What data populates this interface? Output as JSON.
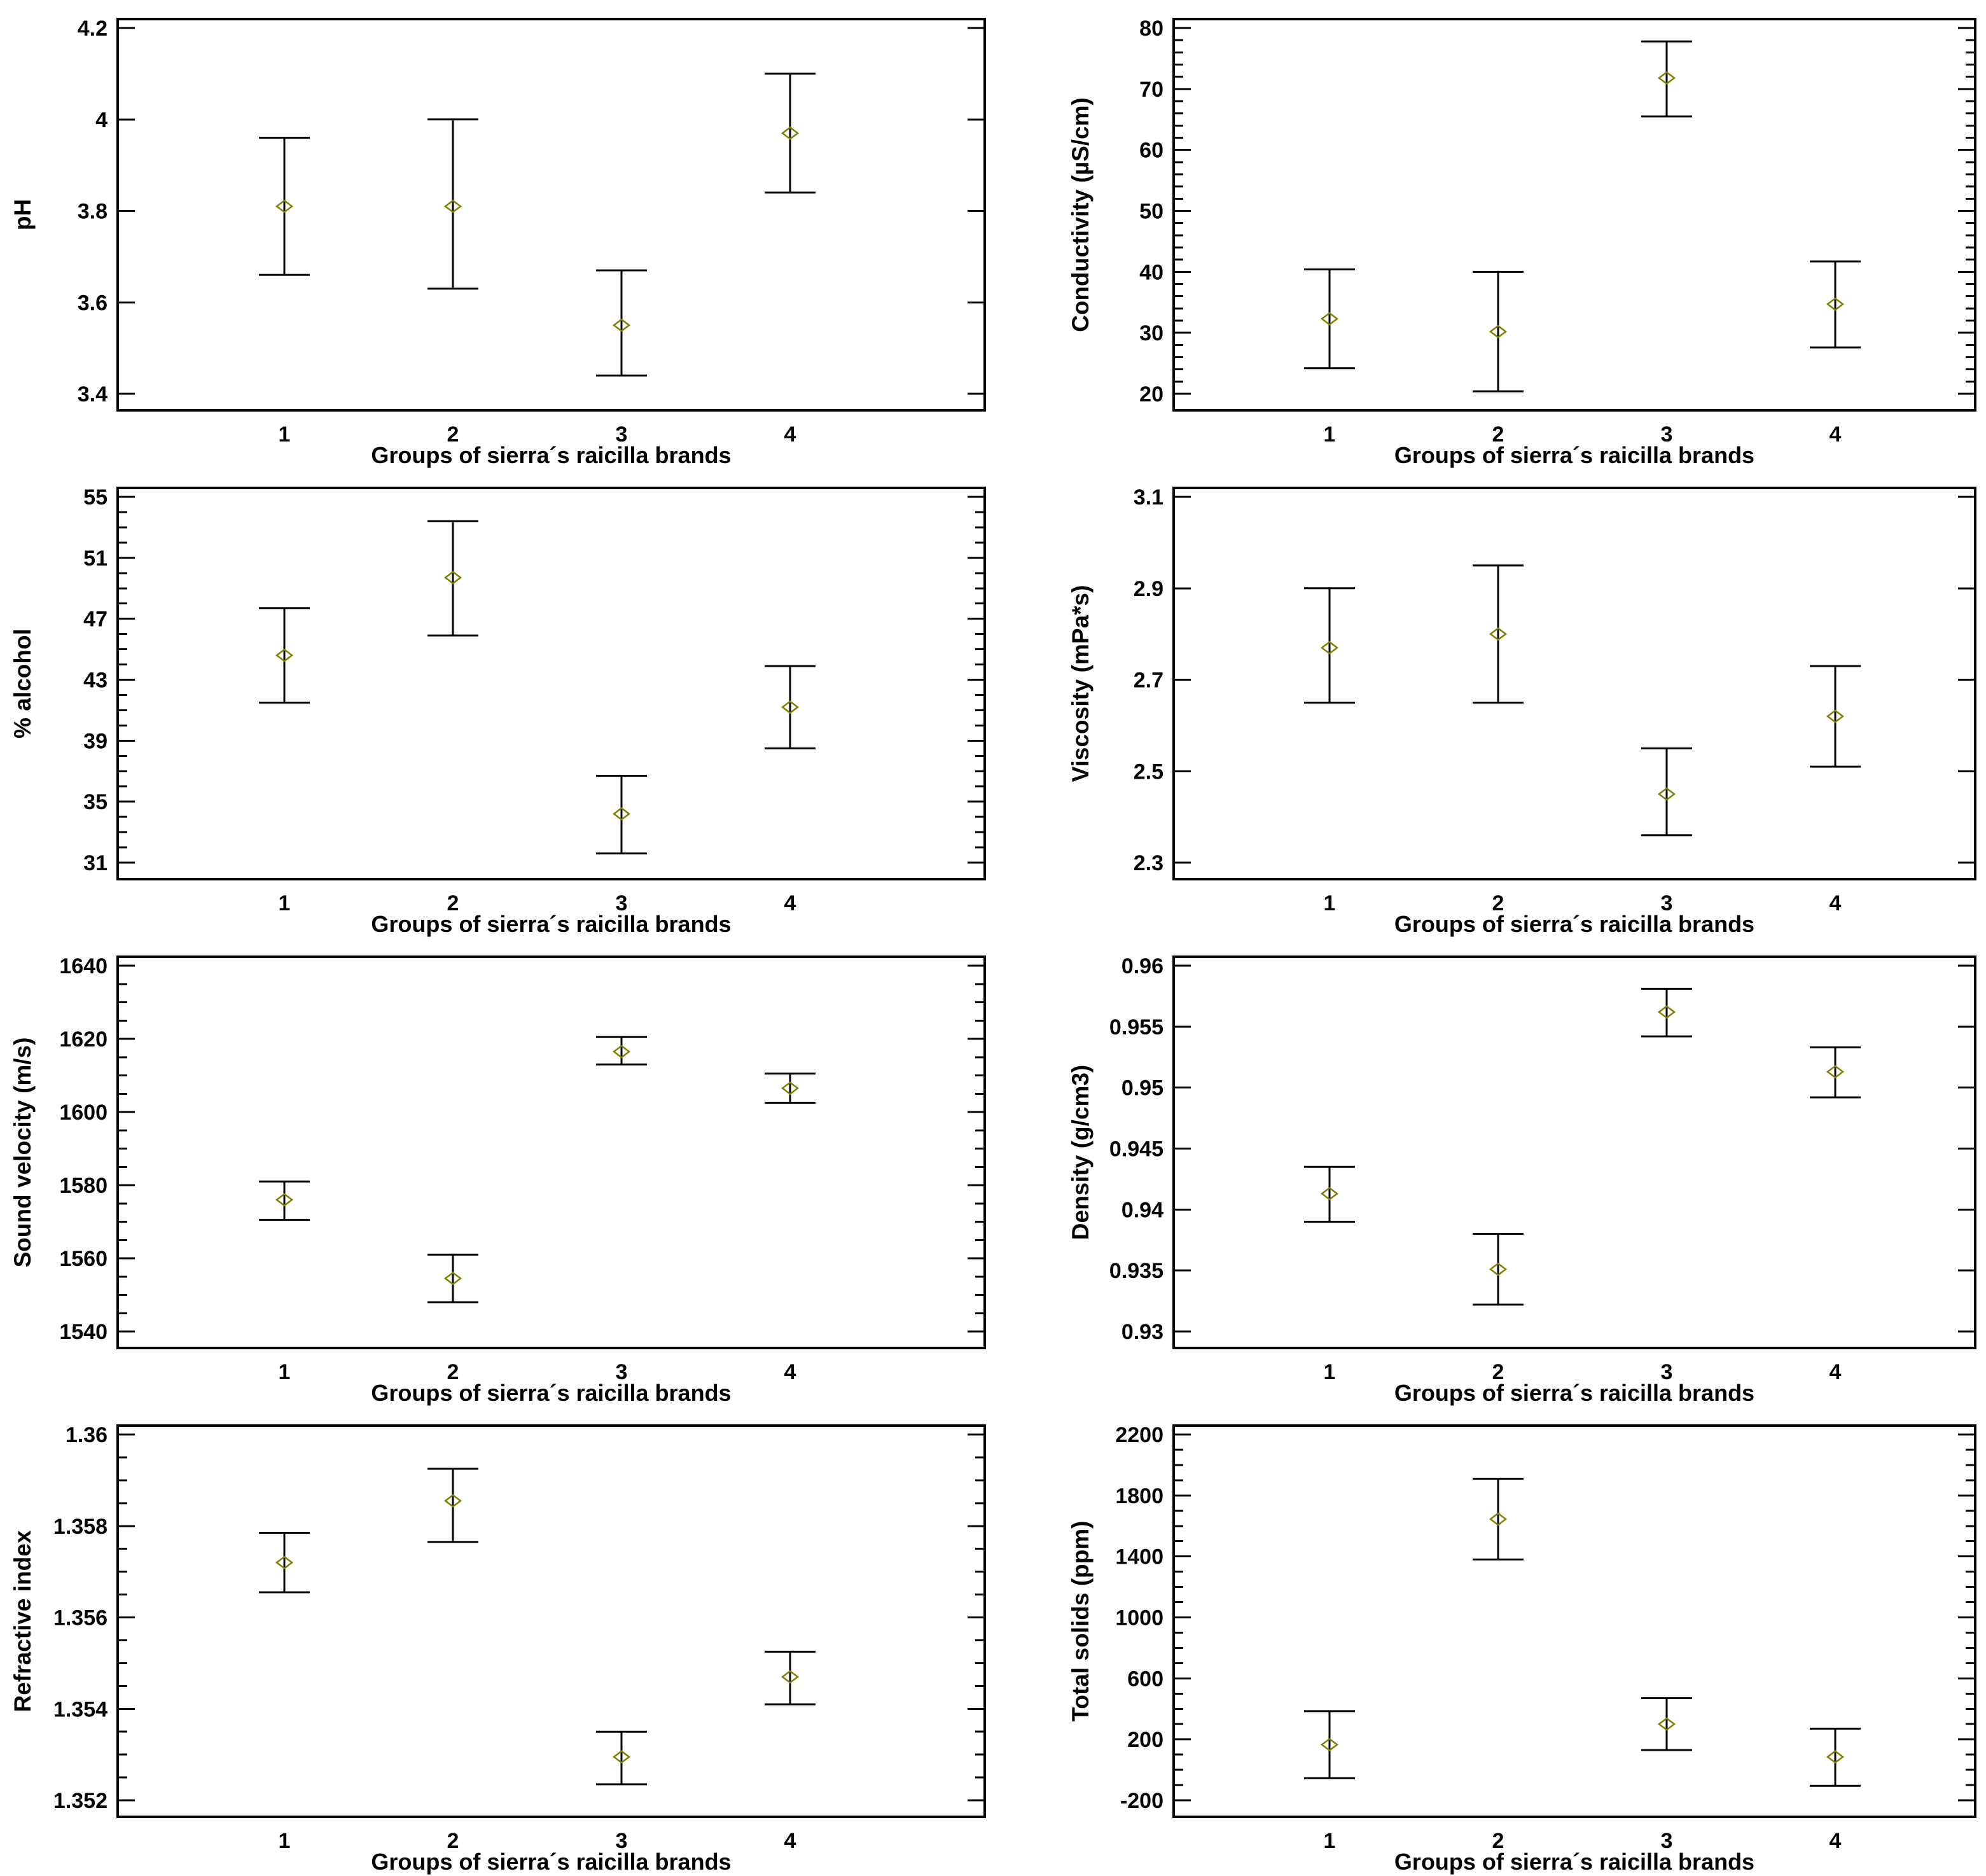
{
  "figure": {
    "layout": {
      "rows": 4,
      "cols": 2
    },
    "marker_color": "#808000",
    "axis_color": "#000000",
    "background_color": "#ffffff",
    "marker_shape": "open-diamond"
  },
  "chart_data": [
    {
      "type": "scatter",
      "subtype": "means-with-error-bars",
      "title": "",
      "ylabel": "pH",
      "xlabel": "Groups of sierra´s raicilla brands",
      "groups": [
        "1",
        "2",
        "3",
        "4"
      ],
      "ytick_values": [
        3.4,
        3.6,
        3.8,
        4.0,
        4.2
      ],
      "ytick_labels": [
        "3.4",
        "3.6",
        "3.8",
        "4",
        "4.2"
      ],
      "ylim": [
        3.4,
        4.2
      ],
      "minor_tick_step": null,
      "means": [
        3.81,
        3.81,
        3.55,
        3.97
      ],
      "lower": [
        3.66,
        3.63,
        3.44,
        3.84
      ],
      "upper": [
        3.96,
        4.0,
        3.67,
        4.1
      ]
    },
    {
      "type": "scatter",
      "subtype": "means-with-error-bars",
      "title": "",
      "ylabel": "Conductivity (µS/cm)",
      "xlabel": "Groups of sierra´s raicilla brands",
      "groups": [
        "1",
        "2",
        "3",
        "4"
      ],
      "ytick_values": [
        20,
        30,
        40,
        50,
        60,
        70,
        80
      ],
      "ytick_labels": [
        "20",
        "30",
        "40",
        "50",
        "60",
        "70",
        "80"
      ],
      "ylim": [
        20,
        80
      ],
      "minor_tick_step": 2,
      "means": [
        32.3,
        30.2,
        71.8,
        34.7
      ],
      "lower": [
        24.2,
        20.4,
        65.5,
        27.6
      ],
      "upper": [
        40.4,
        40.0,
        77.8,
        41.7
      ]
    },
    {
      "type": "scatter",
      "subtype": "means-with-error-bars",
      "title": "",
      "ylabel": "% alcohol",
      "xlabel": "Groups of sierra´s raicilla brands",
      "groups": [
        "1",
        "2",
        "3",
        "4"
      ],
      "ytick_values": [
        31,
        35,
        39,
        43,
        47,
        51,
        55
      ],
      "ytick_labels": [
        "31",
        "35",
        "39",
        "43",
        "47",
        "51",
        "55"
      ],
      "ylim": [
        31,
        55
      ],
      "minor_tick_step": 1,
      "means": [
        44.6,
        49.7,
        34.2,
        41.2
      ],
      "lower": [
        41.5,
        45.9,
        31.6,
        38.5
      ],
      "upper": [
        47.7,
        53.4,
        36.7,
        43.9
      ]
    },
    {
      "type": "scatter",
      "subtype": "means-with-error-bars",
      "title": "",
      "ylabel": "Viscosity (mPa*s)",
      "xlabel": "Groups of sierra´s raicilla brands",
      "groups": [
        "1",
        "2",
        "3",
        "4"
      ],
      "ytick_values": [
        2.3,
        2.5,
        2.7,
        2.9,
        3.1
      ],
      "ytick_labels": [
        "2.3",
        "2.5",
        "2.7",
        "2.9",
        "3.1"
      ],
      "ylim": [
        2.3,
        3.1
      ],
      "minor_tick_step": null,
      "means": [
        2.77,
        2.8,
        2.45,
        2.62
      ],
      "lower": [
        2.65,
        2.65,
        2.36,
        2.51
      ],
      "upper": [
        2.9,
        2.95,
        2.55,
        2.73
      ]
    },
    {
      "type": "scatter",
      "subtype": "means-with-error-bars",
      "title": "",
      "ylabel": "Sound velocity (m/s)",
      "xlabel": "Groups of sierra´s raicilla brands",
      "groups": [
        "1",
        "2",
        "3",
        "4"
      ],
      "ytick_values": [
        1540,
        1560,
        1580,
        1600,
        1620,
        1640
      ],
      "ytick_labels": [
        "1540",
        "1560",
        "1580",
        "1600",
        "1620",
        "1640"
      ],
      "ylim": [
        1540,
        1640
      ],
      "minor_tick_step": 5,
      "means": [
        1576,
        1554.5,
        1616.5,
        1606.5
      ],
      "lower": [
        1570.5,
        1548,
        1613,
        1602.5
      ],
      "upper": [
        1581,
        1561,
        1620.5,
        1610.5
      ]
    },
    {
      "type": "scatter",
      "subtype": "means-with-error-bars",
      "title": "",
      "ylabel": "Density (g/cm3)",
      "xlabel": "Groups of sierra´s raicilla brands",
      "groups": [
        "1",
        "2",
        "3",
        "4"
      ],
      "ytick_values": [
        0.93,
        0.935,
        0.94,
        0.945,
        0.95,
        0.955,
        0.96
      ],
      "ytick_labels": [
        "0.93",
        "0.935",
        "0.94",
        "0.945",
        "0.95",
        "0.955",
        "0.96"
      ],
      "ylim": [
        0.93,
        0.96
      ],
      "minor_tick_step": null,
      "means": [
        0.9413,
        0.9351,
        0.9562,
        0.9513
      ],
      "lower": [
        0.939,
        0.9322,
        0.9542,
        0.9492
      ],
      "upper": [
        0.9435,
        0.938,
        0.9581,
        0.9533
      ]
    },
    {
      "type": "scatter",
      "subtype": "means-with-error-bars",
      "title": "",
      "ylabel": "Refractive index",
      "xlabel": "Groups of sierra´s raicilla brands",
      "groups": [
        "1",
        "2",
        "3",
        "4"
      ],
      "ytick_values": [
        1.352,
        1.354,
        1.356,
        1.358,
        1.36
      ],
      "ytick_labels": [
        "1.352",
        "1.354",
        "1.356",
        "1.358",
        "1.36"
      ],
      "ylim": [
        1.352,
        1.36
      ],
      "minor_tick_step": 0.0005,
      "means": [
        1.3572,
        1.35855,
        1.35295,
        1.3547
      ],
      "lower": [
        1.35655,
        1.35765,
        1.35235,
        1.3541
      ],
      "upper": [
        1.35785,
        1.35925,
        1.3535,
        1.35525
      ]
    },
    {
      "type": "scatter",
      "subtype": "means-with-error-bars",
      "title": "",
      "ylabel": "Total solids (ppm)",
      "xlabel": "Groups of sierra´s raicilla brands",
      "groups": [
        "1",
        "2",
        "3",
        "4"
      ],
      "ytick_values": [
        -200,
        200,
        600,
        1000,
        1400,
        1800,
        2200
      ],
      "ytick_labels": [
        "-200",
        "200",
        "600",
        "1000",
        "1400",
        "1800",
        "2200"
      ],
      "ylim": [
        -200,
        2200
      ],
      "minor_tick_step": 100,
      "means": [
        165,
        1645,
        300,
        85
      ],
      "lower": [
        -55,
        1380,
        130,
        -105
      ],
      "upper": [
        385,
        1910,
        470,
        270
      ]
    }
  ]
}
